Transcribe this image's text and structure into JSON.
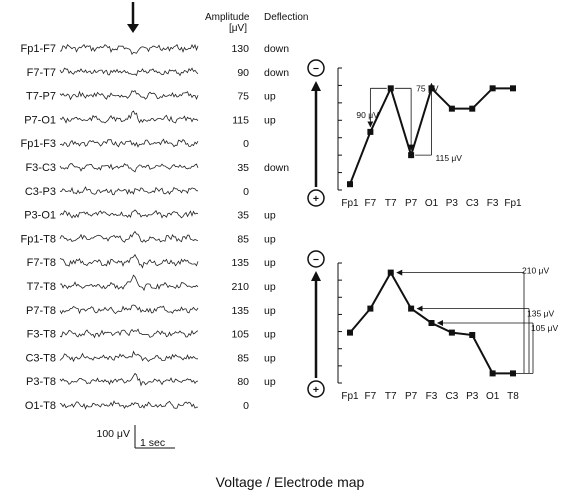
{
  "header": {
    "amplitude": "Amplitude",
    "amplitude_unit": "[μV]",
    "deflection": "Deflection"
  },
  "channels": [
    {
      "name": "Fp1-F7",
      "amplitude": "130",
      "deflection": "down"
    },
    {
      "name": "F7-T7",
      "amplitude": "90",
      "deflection": "down"
    },
    {
      "name": "T7-P7",
      "amplitude": "75",
      "deflection": "up"
    },
    {
      "name": "P7-O1",
      "amplitude": "115",
      "deflection": "up"
    },
    {
      "name": "Fp1-F3",
      "amplitude": "0",
      "deflection": ""
    },
    {
      "name": "F3-C3",
      "amplitude": "35",
      "deflection": "down"
    },
    {
      "name": "C3-P3",
      "amplitude": "0",
      "deflection": ""
    },
    {
      "name": "P3-O1",
      "amplitude": "35",
      "deflection": "up"
    },
    {
      "name": "Fp1-T8",
      "amplitude": "85",
      "deflection": "up"
    },
    {
      "name": "F7-T8",
      "amplitude": "135",
      "deflection": "up"
    },
    {
      "name": "T7-T8",
      "amplitude": "210",
      "deflection": "up"
    },
    {
      "name": "P7-T8",
      "amplitude": "135",
      "deflection": "up"
    },
    {
      "name": "F3-T8",
      "amplitude": "105",
      "deflection": "up"
    },
    {
      "name": "C3-T8",
      "amplitude": "85",
      "deflection": "up"
    },
    {
      "name": "P3-T8",
      "amplitude": "80",
      "deflection": "up"
    },
    {
      "name": "O1-T8",
      "amplitude": "0",
      "deflection": ""
    }
  ],
  "scale_bar": {
    "amplitude": "100 μV",
    "time": "1 sec"
  },
  "polarity": {
    "negative": "−",
    "positive": "+"
  },
  "chart_data": [
    {
      "type": "line",
      "categories": [
        "Fp1",
        "F7",
        "T7",
        "P7",
        "O1",
        "P3",
        "C3",
        "F3",
        "Fp1"
      ],
      "values": [
        -130,
        -40,
        35,
        -80,
        35,
        0,
        0,
        35,
        35
      ],
      "y_direction": "negative up",
      "annotations": [
        "90 μV",
        "75 μV",
        "115 μV"
      ]
    },
    {
      "type": "line",
      "categories": [
        "Fp1",
        "F7",
        "T7",
        "P7",
        "F3",
        "C3",
        "P3",
        "O1",
        "T8"
      ],
      "values": [
        85,
        135,
        210,
        135,
        105,
        85,
        80,
        0,
        0
      ],
      "y_direction": "negative up",
      "annotations": [
        "210 μV",
        "135 μV",
        "105 μV"
      ]
    }
  ],
  "caption": "Voltage / Electrode map"
}
